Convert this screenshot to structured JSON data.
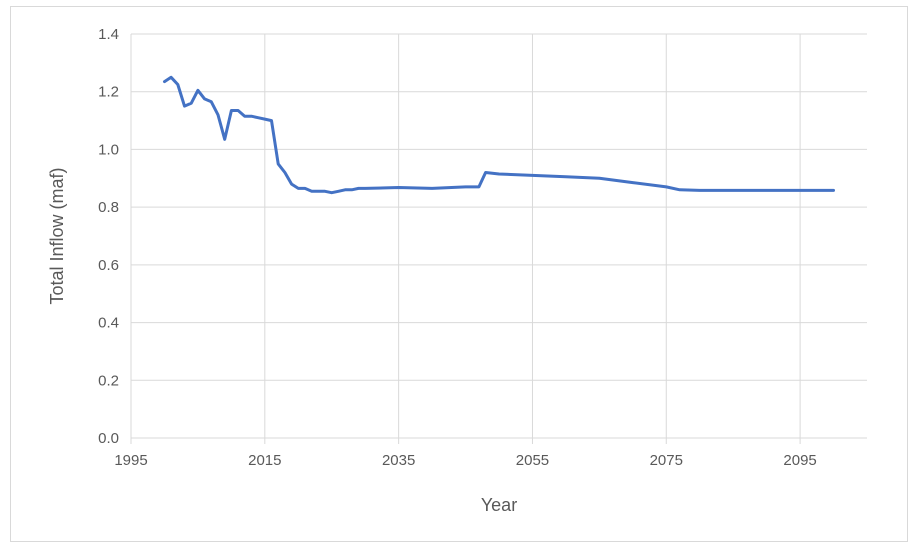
{
  "chart_data": {
    "type": "line",
    "title": "",
    "xlabel": "Year",
    "ylabel": "Total Inflow (maf)",
    "xlim": [
      1995,
      2105
    ],
    "ylim": [
      0,
      1.4
    ],
    "x_ticks": [
      1995,
      2015,
      2035,
      2055,
      2075,
      2095
    ],
    "y_ticks": [
      "0.0",
      "0.2",
      "0.4",
      "0.6",
      "0.8",
      "1.0",
      "1.2",
      "1.4"
    ],
    "y_tick_values": [
      0,
      0.2,
      0.4,
      0.6,
      0.8,
      1.0,
      1.2,
      1.4
    ],
    "grid": {
      "vertical": true,
      "horizontal": true
    },
    "legend": "none",
    "colors": {
      "line": "#4472c4",
      "grid": "#d9d9d9",
      "text": "#595959"
    },
    "series": [
      {
        "x": [
          2000,
          2001,
          2002,
          2003,
          2004,
          2005,
          2006,
          2007,
          2008,
          2009,
          2010,
          2011,
          2012,
          2013,
          2014,
          2015,
          2016,
          2017,
          2018,
          2019,
          2020,
          2021,
          2022,
          2023,
          2024,
          2025,
          2026,
          2027,
          2028,
          2029,
          2030,
          2035,
          2040,
          2045,
          2047,
          2048,
          2050,
          2055,
          2060,
          2065,
          2070,
          2075,
          2077,
          2080,
          2085,
          2090,
          2095,
          2100
        ],
        "y": [
          1.235,
          1.25,
          1.225,
          1.15,
          1.16,
          1.205,
          1.175,
          1.165,
          1.12,
          1.035,
          1.135,
          1.135,
          1.115,
          1.115,
          1.11,
          1.105,
          1.1,
          0.95,
          0.92,
          0.88,
          0.865,
          0.865,
          0.855,
          0.855,
          0.855,
          0.85,
          0.855,
          0.86,
          0.86,
          0.865,
          0.865,
          0.868,
          0.865,
          0.87,
          0.87,
          0.92,
          0.915,
          0.91,
          0.905,
          0.9,
          0.885,
          0.87,
          0.86,
          0.858,
          0.858,
          0.858,
          0.858,
          0.858
        ]
      }
    ]
  }
}
